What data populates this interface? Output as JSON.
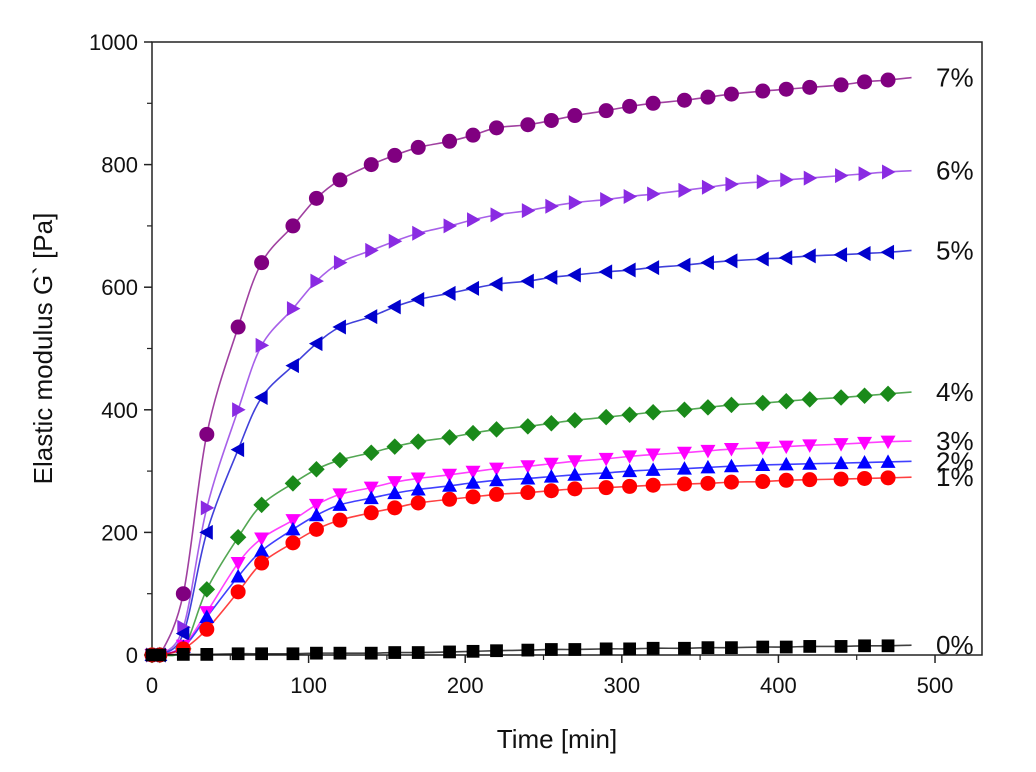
{
  "chart_data": {
    "type": "scatter",
    "title": "",
    "xlabel": "Time [min]",
    "ylabel": "Elastic modulus G` [Pa]",
    "xlim": [
      0,
      530
    ],
    "ylim": [
      0,
      1000
    ],
    "x_ticks": [
      0,
      100,
      200,
      300,
      400,
      500
    ],
    "y_ticks": [
      0,
      200,
      400,
      600,
      800,
      1000
    ],
    "grid": false,
    "legend": "none",
    "x": [
      0,
      5,
      20,
      35,
      55,
      70,
      90,
      105,
      120,
      140,
      155,
      170,
      190,
      205,
      220,
      240,
      255,
      270,
      290,
      305,
      320,
      340,
      355,
      370,
      390,
      405,
      420,
      440,
      455,
      470,
      485
    ],
    "series": [
      {
        "label": "7%",
        "color": "#800080",
        "marker": "circle",
        "values": [
          0,
          0,
          100,
          360,
          535,
          640,
          700,
          745,
          775,
          800,
          815,
          828,
          838,
          848,
          860,
          865,
          872,
          880,
          888,
          895,
          900,
          905,
          910,
          915,
          920,
          923,
          926,
          930,
          935,
          938,
          942
        ]
      },
      {
        "label": "6%",
        "color": "#8a2be2",
        "marker": "triangle-right",
        "values": [
          0,
          0,
          45,
          240,
          400,
          505,
          565,
          610,
          640,
          660,
          675,
          688,
          700,
          710,
          718,
          725,
          732,
          738,
          743,
          748,
          752,
          758,
          763,
          768,
          772,
          775,
          778,
          782,
          785,
          788,
          790
        ]
      },
      {
        "label": "5%",
        "color": "#0000cd",
        "marker": "triangle-left",
        "values": [
          0,
          0,
          35,
          200,
          335,
          420,
          472,
          508,
          535,
          552,
          568,
          580,
          590,
          598,
          605,
          610,
          616,
          620,
          625,
          628,
          632,
          636,
          640,
          643,
          646,
          648,
          651,
          653,
          655,
          657,
          660
        ]
      },
      {
        "label": "4%",
        "color": "#1a8a1a",
        "marker": "diamond",
        "values": [
          0,
          0,
          10,
          107,
          192,
          245,
          280,
          303,
          318,
          330,
          340,
          348,
          355,
          362,
          368,
          373,
          378,
          383,
          388,
          392,
          396,
          400,
          404,
          408,
          411,
          414,
          417,
          420,
          423,
          426,
          429
        ]
      },
      {
        "label": "3%",
        "color": "#ff00ff",
        "marker": "triangle-down",
        "values": [
          0,
          0,
          15,
          70,
          150,
          190,
          220,
          245,
          262,
          273,
          282,
          288,
          294,
          299,
          304,
          308,
          312,
          316,
          320,
          324,
          327,
          330,
          333,
          336,
          338,
          340,
          342,
          344,
          346,
          348,
          349
        ]
      },
      {
        "label": "2%",
        "color": "#0000ff",
        "marker": "triangle-up",
        "values": [
          0,
          0,
          13,
          62,
          128,
          170,
          205,
          228,
          245,
          256,
          264,
          270,
          276,
          281,
          285,
          288,
          291,
          294,
          297,
          300,
          302,
          304,
          306,
          308,
          310,
          311,
          312,
          313,
          314,
          315,
          316
        ]
      },
      {
        "label": "1%",
        "color": "#ff0000",
        "marker": "circle",
        "values": [
          0,
          0,
          10,
          42,
          103,
          150,
          183,
          205,
          220,
          232,
          240,
          248,
          254,
          258,
          262,
          265,
          268,
          271,
          273,
          275,
          277,
          279,
          280,
          282,
          283,
          285,
          286,
          287,
          288,
          289,
          290
        ]
      },
      {
        "label": "0%",
        "color": "#000000",
        "marker": "square",
        "values": [
          0,
          0,
          1,
          1,
          2,
          2,
          2,
          3,
          3,
          3,
          4,
          4,
          5,
          6,
          7,
          8,
          9,
          9,
          10,
          10,
          11,
          11,
          12,
          12,
          13,
          13,
          14,
          14,
          15,
          15,
          16
        ]
      }
    ]
  }
}
